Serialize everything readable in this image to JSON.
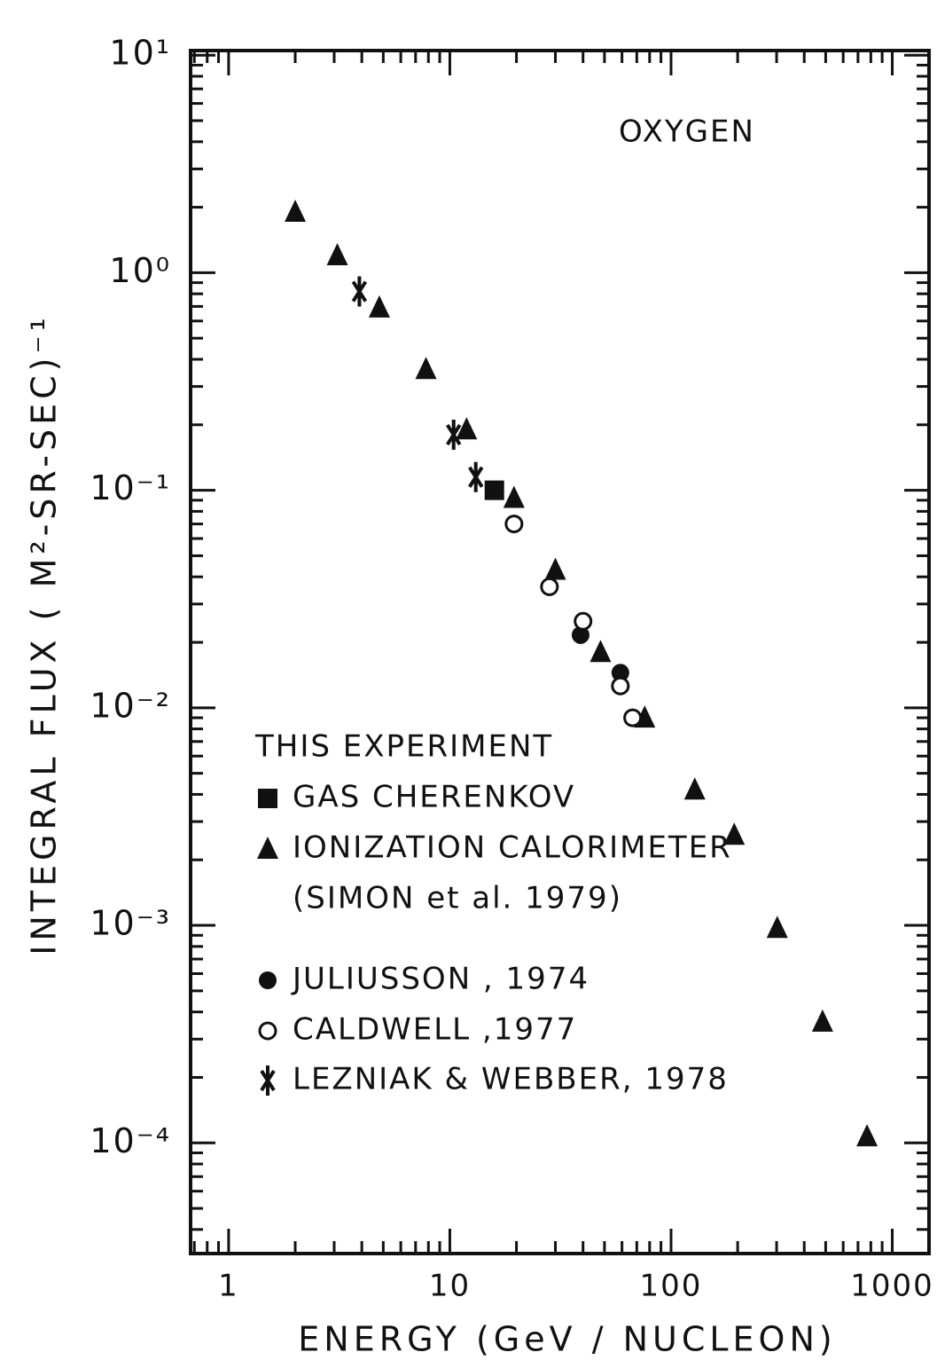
{
  "chart_data": {
    "type": "scatter",
    "annotation": "OXYGEN",
    "x_label": "ENERGY  (GeV / NUCLEON)",
    "y_label": "INTEGRAL FLUX ( M²-SR-SEC)⁻¹",
    "log_x": true,
    "log_y": true,
    "xlim": [
      0.673,
      1466
    ],
    "ylim": [
      3.1e-05,
      10.5
    ],
    "xticks": [
      1,
      10,
      100,
      1000
    ],
    "yticks": [
      {
        "value": 0.0001,
        "label": "10⁻⁴"
      },
      {
        "value": 0.001,
        "label": "10⁻³"
      },
      {
        "value": 0.01,
        "label": "10⁻²"
      },
      {
        "value": 0.1,
        "label": "10⁻¹"
      },
      {
        "value": 1,
        "label": "10⁰"
      },
      {
        "value": 10,
        "label": "10¹"
      }
    ],
    "legend_title": "THIS EXPERIMENT",
    "legend_note": "(SIMON et al. 1979)",
    "series": [
      {
        "name": "GAS CHERENKOV",
        "marker": "square",
        "color": "#111111",
        "x": [
          15.9
        ],
        "values": [
          0.1
        ]
      },
      {
        "name": "IONIZATION CALORIMETER",
        "marker": "triangle",
        "color": "#111111",
        "x": [
          2.0,
          3.1,
          4.8,
          7.8,
          11.9,
          19.5,
          30,
          48,
          76,
          128,
          193,
          302,
          484,
          769
        ],
        "values": [
          1.9,
          1.2,
          0.69,
          0.36,
          0.19,
          0.092,
          0.043,
          0.018,
          0.009,
          0.0042,
          0.0026,
          0.00097,
          0.00036,
          0.000107
        ]
      },
      {
        "name": "JULIUSSON , 1974",
        "marker": "circle",
        "color": "#111111",
        "x": [
          39,
          59
        ],
        "values": [
          0.0216,
          0.0145
        ]
      },
      {
        "name": "CALDWELL ,1977",
        "marker": "open-circle",
        "color": "#111111",
        "x": [
          19.5,
          28.2,
          40,
          59,
          67
        ],
        "values": [
          0.07,
          0.036,
          0.025,
          0.0126,
          0.009
        ]
      },
      {
        "name": "LEZNIAK & WEBBER, 1978",
        "marker": "x",
        "color": "#111111",
        "x": [
          3.9,
          10.4,
          13.1
        ],
        "values": [
          0.82,
          0.18,
          0.115
        ]
      }
    ]
  }
}
